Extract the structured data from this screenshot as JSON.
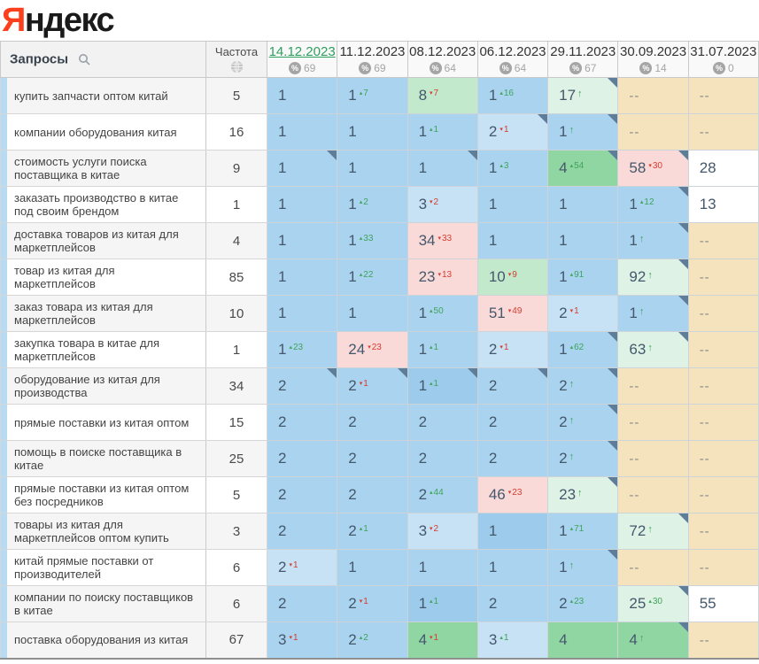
{
  "logo": {
    "ya": "Я",
    "rest": "ндекс"
  },
  "header": {
    "queries_label": "Запросы",
    "frequency_label": "Частота",
    "dates": [
      {
        "label": "14.12.2023",
        "visibility": 69,
        "active": true
      },
      {
        "label": "11.12.2023",
        "visibility": 69,
        "active": false
      },
      {
        "label": "08.12.2023",
        "visibility": 64,
        "active": false
      },
      {
        "label": "06.12.2023",
        "visibility": 64,
        "active": false
      },
      {
        "label": "29.11.2023",
        "visibility": 67,
        "active": false
      },
      {
        "label": "30.09.2023",
        "visibility": 14,
        "active": false
      },
      {
        "label": "31.07.2023",
        "visibility": 0,
        "active": false
      }
    ]
  },
  "icons": {
    "search": "search-icon",
    "globe": "globe-icon",
    "percent_badge": "%",
    "up_arrow": "↑",
    "change_up_mark": "▴",
    "change_down_mark": "▾"
  },
  "colors": {
    "logo_red": "#fc3f1d",
    "accent_green": "#2f9e5f",
    "change_up": "#3fa45b",
    "change_down": "#d63c30",
    "cell_blue": "#a9d3ee",
    "cell_blue_light": "#c6e2f4",
    "cell_blue_dark": "#9ccbeb",
    "cell_green": "#90d6a3",
    "cell_green_mid": "#c3e9cc",
    "cell_green_pale": "#def3e6",
    "cell_pink": "#f9dad8",
    "cell_tan": "#f5e3be",
    "corner_marker": "#5e7d99"
  },
  "rows": [
    {
      "query": "купить запчасти оптом китай",
      "frequency": 5,
      "cells": [
        {
          "value": "1",
          "bg": "blue"
        },
        {
          "value": "1",
          "change": 7,
          "dir": "up",
          "bg": "blue"
        },
        {
          "value": "8",
          "change": 7,
          "dir": "down",
          "bg": "green-mid"
        },
        {
          "value": "1",
          "change": 16,
          "dir": "up",
          "bg": "blue"
        },
        {
          "value": "17",
          "arrow": true,
          "bg": "green-pale",
          "corner": true
        },
        {
          "value": "--",
          "bg": "tan"
        },
        {
          "value": "--",
          "bg": "tan"
        }
      ]
    },
    {
      "query": "компании оборудования китая",
      "frequency": 16,
      "cells": [
        {
          "value": "1",
          "bg": "blue"
        },
        {
          "value": "1",
          "bg": "blue"
        },
        {
          "value": "1",
          "change": 1,
          "dir": "up",
          "bg": "blue"
        },
        {
          "value": "2",
          "change": 1,
          "dir": "down",
          "bg": "blue-light",
          "corner": true
        },
        {
          "value": "1",
          "arrow": true,
          "bg": "blue",
          "corner": true
        },
        {
          "value": "--",
          "bg": "tan"
        },
        {
          "value": "--",
          "bg": "tan"
        }
      ]
    },
    {
      "query": "стоимость услуги поиска поставщика в китае",
      "frequency": 9,
      "cells": [
        {
          "value": "1",
          "bg": "blue",
          "corner": true
        },
        {
          "value": "1",
          "bg": "blue"
        },
        {
          "value": "1",
          "bg": "blue",
          "corner": true
        },
        {
          "value": "1",
          "change": 3,
          "dir": "up",
          "bg": "blue"
        },
        {
          "value": "4",
          "change": 54,
          "dir": "up",
          "bg": "green",
          "corner": true
        },
        {
          "value": "58",
          "change": 30,
          "dir": "down",
          "bg": "pink",
          "corner": true
        },
        {
          "value": "28",
          "bg": "white"
        }
      ]
    },
    {
      "query": "заказать производство в китае под своим брендом",
      "frequency": 1,
      "cells": [
        {
          "value": "1",
          "bg": "blue"
        },
        {
          "value": "1",
          "change": 2,
          "dir": "up",
          "bg": "blue"
        },
        {
          "value": "3",
          "change": 2,
          "dir": "down",
          "bg": "blue-light"
        },
        {
          "value": "1",
          "bg": "blue"
        },
        {
          "value": "1",
          "bg": "blue"
        },
        {
          "value": "1",
          "change": 12,
          "dir": "up",
          "bg": "blue",
          "corner": true
        },
        {
          "value": "13",
          "bg": "white"
        }
      ]
    },
    {
      "query": "доставка товаров из китая для маркетплейсов",
      "frequency": 4,
      "cells": [
        {
          "value": "1",
          "bg": "blue"
        },
        {
          "value": "1",
          "change": 33,
          "dir": "up",
          "bg": "blue"
        },
        {
          "value": "34",
          "change": 33,
          "dir": "down",
          "bg": "pink"
        },
        {
          "value": "1",
          "bg": "blue"
        },
        {
          "value": "1",
          "bg": "blue"
        },
        {
          "value": "1",
          "arrow": true,
          "bg": "blue",
          "corner": true
        },
        {
          "value": "--",
          "bg": "tan"
        }
      ]
    },
    {
      "query": "товар из китая для маркетплейсов",
      "frequency": 85,
      "cells": [
        {
          "value": "1",
          "bg": "blue"
        },
        {
          "value": "1",
          "change": 22,
          "dir": "up",
          "bg": "blue"
        },
        {
          "value": "23",
          "change": 13,
          "dir": "down",
          "bg": "pink"
        },
        {
          "value": "10",
          "change": 9,
          "dir": "down",
          "bg": "green-mid"
        },
        {
          "value": "1",
          "change": 91,
          "dir": "up",
          "bg": "blue"
        },
        {
          "value": "92",
          "arrow": true,
          "bg": "green-pale",
          "corner": true
        },
        {
          "value": "--",
          "bg": "tan"
        }
      ]
    },
    {
      "query": "заказ товара из китая для маркетплейсов",
      "frequency": 10,
      "cells": [
        {
          "value": "1",
          "bg": "blue"
        },
        {
          "value": "1",
          "bg": "blue"
        },
        {
          "value": "1",
          "change": 50,
          "dir": "up",
          "bg": "blue"
        },
        {
          "value": "51",
          "change": 49,
          "dir": "down",
          "bg": "pink"
        },
        {
          "value": "2",
          "change": 1,
          "dir": "down",
          "bg": "blue-light"
        },
        {
          "value": "1",
          "arrow": true,
          "bg": "blue",
          "corner": true
        },
        {
          "value": "--",
          "bg": "tan"
        }
      ]
    },
    {
      "query": "закупка товара в китае для маркетплейсов",
      "frequency": 1,
      "cells": [
        {
          "value": "1",
          "change": 23,
          "dir": "up",
          "bg": "blue"
        },
        {
          "value": "24",
          "change": 23,
          "dir": "down",
          "bg": "pink"
        },
        {
          "value": "1",
          "change": 1,
          "dir": "up",
          "bg": "blue"
        },
        {
          "value": "2",
          "change": 1,
          "dir": "down",
          "bg": "blue-light"
        },
        {
          "value": "1",
          "change": 62,
          "dir": "up",
          "bg": "blue",
          "corner": true
        },
        {
          "value": "63",
          "arrow": true,
          "bg": "green-pale",
          "corner": true
        },
        {
          "value": "--",
          "bg": "tan"
        }
      ]
    },
    {
      "query": "оборудование из китая для производства",
      "frequency": 34,
      "cells": [
        {
          "value": "2",
          "bg": "blue",
          "corner": true
        },
        {
          "value": "2",
          "change": 1,
          "dir": "down",
          "bg": "blue",
          "corner": true
        },
        {
          "value": "1",
          "change": 1,
          "dir": "up",
          "bg": "blue-dark",
          "corner": true
        },
        {
          "value": "2",
          "bg": "blue",
          "corner": true
        },
        {
          "value": "2",
          "arrow": true,
          "bg": "blue",
          "corner": true
        },
        {
          "value": "--",
          "bg": "tan"
        },
        {
          "value": "--",
          "bg": "tan"
        }
      ]
    },
    {
      "query": "прямые поставки из китая оптом",
      "frequency": 15,
      "cells": [
        {
          "value": "2",
          "bg": "blue"
        },
        {
          "value": "2",
          "bg": "blue"
        },
        {
          "value": "2",
          "bg": "blue"
        },
        {
          "value": "2",
          "bg": "blue"
        },
        {
          "value": "2",
          "arrow": true,
          "bg": "blue",
          "corner": true
        },
        {
          "value": "--",
          "bg": "tan"
        },
        {
          "value": "--",
          "bg": "tan"
        }
      ]
    },
    {
      "query": "помощь в поиске поставщика в китае",
      "frequency": 25,
      "cells": [
        {
          "value": "2",
          "bg": "blue"
        },
        {
          "value": "2",
          "bg": "blue"
        },
        {
          "value": "2",
          "bg": "blue"
        },
        {
          "value": "2",
          "bg": "blue"
        },
        {
          "value": "2",
          "arrow": true,
          "bg": "blue",
          "corner": true
        },
        {
          "value": "--",
          "bg": "tan"
        },
        {
          "value": "--",
          "bg": "tan"
        }
      ]
    },
    {
      "query": "прямые поставки из китая оптом без посредников",
      "frequency": 5,
      "cells": [
        {
          "value": "2",
          "bg": "blue"
        },
        {
          "value": "2",
          "bg": "blue"
        },
        {
          "value": "2",
          "change": 44,
          "dir": "up",
          "bg": "blue"
        },
        {
          "value": "46",
          "change": 23,
          "dir": "down",
          "bg": "pink"
        },
        {
          "value": "23",
          "arrow": true,
          "bg": "green-pale",
          "corner": true
        },
        {
          "value": "--",
          "bg": "tan"
        },
        {
          "value": "--",
          "bg": "tan"
        }
      ]
    },
    {
      "query": "товары из китая для маркетплейсов оптом купить",
      "frequency": 3,
      "cells": [
        {
          "value": "2",
          "bg": "blue"
        },
        {
          "value": "2",
          "change": 1,
          "dir": "up",
          "bg": "blue"
        },
        {
          "value": "3",
          "change": 2,
          "dir": "down",
          "bg": "blue-light"
        },
        {
          "value": "1",
          "bg": "blue-dark"
        },
        {
          "value": "1",
          "change": 71,
          "dir": "up",
          "bg": "blue"
        },
        {
          "value": "72",
          "arrow": true,
          "bg": "green-pale",
          "corner": true
        },
        {
          "value": "--",
          "bg": "tan"
        }
      ]
    },
    {
      "query": "китай прямые поставки от производителей",
      "frequency": 6,
      "cells": [
        {
          "value": "2",
          "change": 1,
          "dir": "down",
          "bg": "blue-light"
        },
        {
          "value": "1",
          "bg": "blue"
        },
        {
          "value": "1",
          "bg": "blue"
        },
        {
          "value": "1",
          "bg": "blue"
        },
        {
          "value": "1",
          "arrow": true,
          "bg": "blue",
          "corner": true
        },
        {
          "value": "--",
          "bg": "tan"
        },
        {
          "value": "--",
          "bg": "tan"
        }
      ]
    },
    {
      "query": "компании по поиску поставщиков в китае",
      "frequency": 6,
      "cells": [
        {
          "value": "2",
          "bg": "blue"
        },
        {
          "value": "2",
          "change": 1,
          "dir": "down",
          "bg": "blue"
        },
        {
          "value": "1",
          "change": 1,
          "dir": "up",
          "bg": "blue-dark"
        },
        {
          "value": "2",
          "bg": "blue"
        },
        {
          "value": "2",
          "change": 23,
          "dir": "up",
          "bg": "blue"
        },
        {
          "value": "25",
          "change": 30,
          "dir": "up",
          "bg": "green-pale",
          "corner": true
        },
        {
          "value": "55",
          "bg": "white"
        }
      ]
    },
    {
      "query": "поставка оборудования из китая",
      "frequency": 67,
      "cells": [
        {
          "value": "3",
          "change": 1,
          "dir": "down",
          "bg": "blue"
        },
        {
          "value": "2",
          "change": 2,
          "dir": "up",
          "bg": "blue"
        },
        {
          "value": "4",
          "change": 1,
          "dir": "down",
          "bg": "green"
        },
        {
          "value": "3",
          "change": 1,
          "dir": "up",
          "bg": "blue-light"
        },
        {
          "value": "4",
          "bg": "green"
        },
        {
          "value": "4",
          "arrow": true,
          "bg": "green",
          "corner": true
        },
        {
          "value": "--",
          "bg": "tan"
        }
      ]
    }
  ]
}
